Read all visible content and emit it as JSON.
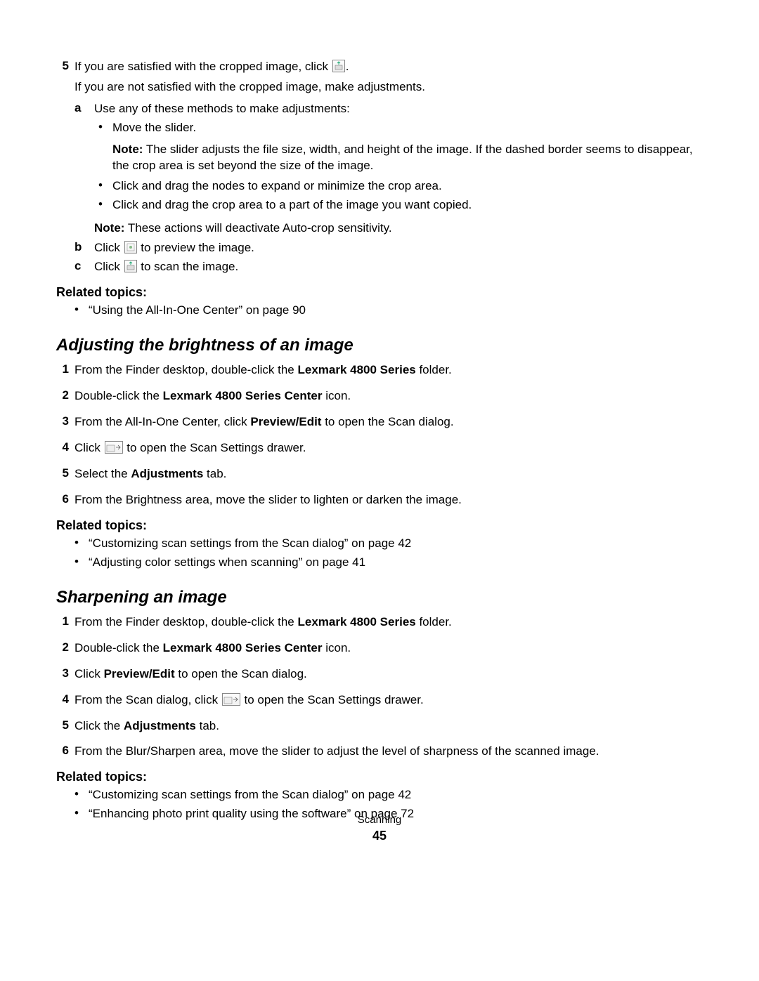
{
  "step5": {
    "num": "5",
    "text_a": "If you are satisfied with the cropped image, click ",
    "text_b": ".",
    "sub": "If you are not satisfied with the cropped image, make adjustments."
  },
  "sub_a": {
    "letter": "a",
    "text": "Use any of these methods to make adjustments:"
  },
  "bullets_a": [
    "Move the slider.",
    "Click and drag the nodes to expand or minimize the crop area.",
    "Click and drag the crop area to a part of the image you want copied."
  ],
  "note1": {
    "label": "Note:",
    "text": " The slider adjusts the file size, width, and height of the image. If the dashed border seems to disappear, the crop area is set beyond the size of the image."
  },
  "note2": {
    "label": "Note:",
    "text": " These actions will deactivate Auto-crop sensitivity."
  },
  "sub_b": {
    "letter": "b",
    "text_a": "Click ",
    "text_b": " to preview the image."
  },
  "sub_c": {
    "letter": "c",
    "text_a": "Click ",
    "text_b": " to scan the image."
  },
  "related1": {
    "heading": "Related topics:",
    "items": [
      "“Using the All-In-One Center” on page 90"
    ]
  },
  "section1": {
    "heading": "Adjusting the brightness of an image",
    "steps": [
      {
        "n": "1",
        "pre": "From the Finder desktop, double-click the ",
        "bold": "Lexmark 4800 Series",
        "post": " folder."
      },
      {
        "n": "2",
        "pre": "Double-click the ",
        "bold": "Lexmark 4800 Series Center",
        "post": " icon."
      },
      {
        "n": "3",
        "pre": "From the All-In-One Center, click ",
        "bold": "Preview/Edit",
        "post": " to open the Scan dialog."
      },
      {
        "n": "4",
        "pre": "Click ",
        "icon": true,
        "post": " to open the Scan Settings drawer."
      },
      {
        "n": "5",
        "pre": "Select the ",
        "bold": "Adjustments",
        "post": " tab."
      },
      {
        "n": "6",
        "pre": "From the Brightness area, move the slider to lighten or darken the image."
      }
    ]
  },
  "related2": {
    "heading": "Related topics:",
    "items": [
      "“Customizing scan settings from the Scan dialog” on page 42",
      "“Adjusting color settings when scanning” on page 41"
    ]
  },
  "section2": {
    "heading": "Sharpening an image",
    "steps": [
      {
        "n": "1",
        "pre": "From the Finder desktop, double-click the ",
        "bold": "Lexmark 4800 Series",
        "post": " folder."
      },
      {
        "n": "2",
        "pre": "Double-click the ",
        "bold": "Lexmark 4800 Series Center",
        "post": " icon."
      },
      {
        "n": "3",
        "pre": "Click ",
        "bold": "Preview/Edit",
        "post": " to open the Scan dialog."
      },
      {
        "n": "4",
        "pre": "From the Scan dialog, click ",
        "icon": true,
        "post": " to open the Scan Settings drawer."
      },
      {
        "n": "5",
        "pre": "Click the ",
        "bold": "Adjustments",
        "post": " tab."
      },
      {
        "n": "6",
        "pre": "From the Blur/Sharpen area, move the slider to adjust the level of sharpness of the scanned image."
      }
    ]
  },
  "related3": {
    "heading": "Related topics:",
    "items": [
      "“Customizing scan settings from the Scan dialog” on page 42",
      "“Enhancing photo print quality using the software” on page 72"
    ]
  },
  "footer": {
    "section": "Scanning",
    "page": "45"
  }
}
